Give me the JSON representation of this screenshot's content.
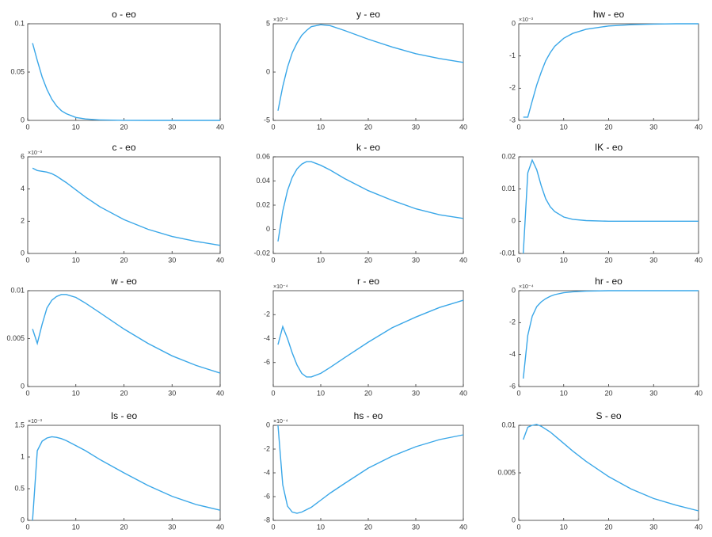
{
  "chart_data": [
    {
      "type": "line",
      "title": "o - eo",
      "x": [
        1,
        2,
        3,
        4,
        5,
        6,
        7,
        8,
        10,
        12,
        15,
        20,
        25,
        30,
        35,
        40
      ],
      "values": [
        0.08,
        0.062,
        0.045,
        0.032,
        0.022,
        0.015,
        0.01,
        0.007,
        0.003,
        0.0015,
        0.0005,
        0.0001,
        0,
        0,
        0,
        0
      ],
      "color": "#3aa7e8",
      "xlim": [
        0,
        40
      ],
      "xticks": [
        0,
        10,
        20,
        30,
        40
      ],
      "ylim": [
        0,
        0.1
      ],
      "yticks": [
        0,
        0.05,
        0.1
      ]
    },
    {
      "type": "line",
      "title": "y - eo",
      "y_multiplier": "×10⁻³",
      "x": [
        1,
        2,
        3,
        4,
        5,
        6,
        7,
        8,
        10,
        12,
        15,
        20,
        25,
        30,
        35,
        40
      ],
      "values": [
        -4,
        -1.5,
        0.5,
        2,
        3,
        3.8,
        4.3,
        4.7,
        4.9,
        4.8,
        4.3,
        3.4,
        2.6,
        1.9,
        1.4,
        1.0
      ],
      "color": "#3aa7e8",
      "xlim": [
        0,
        40
      ],
      "xticks": [
        0,
        10,
        20,
        30,
        40
      ],
      "ylim": [
        -5,
        5
      ],
      "yticks": [
        -5,
        0,
        5
      ]
    },
    {
      "type": "line",
      "title": "hw - eo",
      "y_multiplier": "×10⁻³",
      "x": [
        1,
        2,
        3,
        4,
        5,
        6,
        7,
        8,
        10,
        12,
        15,
        20,
        25,
        30,
        35,
        40
      ],
      "values": [
        -2.9,
        -2.9,
        -2.4,
        -1.9,
        -1.5,
        -1.15,
        -0.9,
        -0.7,
        -0.45,
        -0.3,
        -0.17,
        -0.07,
        -0.03,
        -0.01,
        0,
        0
      ],
      "color": "#3aa7e8",
      "xlim": [
        0,
        40
      ],
      "xticks": [
        0,
        10,
        20,
        30,
        40
      ],
      "ylim": [
        -3,
        0
      ],
      "yticks": [
        -3,
        -2,
        -1,
        0
      ]
    },
    {
      "type": "line",
      "title": "c - eo",
      "y_multiplier": "×10⁻³",
      "x": [
        1,
        2,
        3,
        4,
        5,
        6,
        7,
        8,
        10,
        12,
        15,
        20,
        25,
        30,
        35,
        40
      ],
      "values": [
        5.3,
        5.15,
        5.1,
        5.05,
        4.95,
        4.8,
        4.6,
        4.4,
        3.95,
        3.5,
        2.9,
        2.1,
        1.5,
        1.05,
        0.75,
        0.5
      ],
      "color": "#3aa7e8",
      "xlim": [
        0,
        40
      ],
      "xticks": [
        0,
        10,
        20,
        30,
        40
      ],
      "ylim": [
        0,
        6
      ],
      "yticks": [
        0,
        2,
        4,
        6
      ]
    },
    {
      "type": "line",
      "title": "k - eo",
      "x": [
        1,
        2,
        3,
        4,
        5,
        6,
        7,
        8,
        10,
        12,
        15,
        20,
        25,
        30,
        35,
        40
      ],
      "values": [
        -0.01,
        0.015,
        0.032,
        0.043,
        0.05,
        0.054,
        0.056,
        0.056,
        0.053,
        0.049,
        0.042,
        0.032,
        0.024,
        0.017,
        0.012,
        0.009
      ],
      "color": "#3aa7e8",
      "xlim": [
        0,
        40
      ],
      "xticks": [
        0,
        10,
        20,
        30,
        40
      ],
      "ylim": [
        -0.02,
        0.06
      ],
      "yticks": [
        -0.02,
        0,
        0.02,
        0.04,
        0.06
      ]
    },
    {
      "type": "line",
      "title": "IK - eo",
      "x": [
        1,
        2,
        3,
        4,
        5,
        6,
        7,
        8,
        10,
        12,
        15,
        20,
        25,
        30,
        35,
        40
      ],
      "values": [
        -0.01,
        0.015,
        0.019,
        0.016,
        0.011,
        0.007,
        0.0045,
        0.003,
        0.0013,
        0.0006,
        0.0002,
        0,
        0,
        0,
        0,
        0
      ],
      "color": "#3aa7e8",
      "xlim": [
        0,
        40
      ],
      "xticks": [
        0,
        10,
        20,
        30,
        40
      ],
      "ylim": [
        -0.01,
        0.02
      ],
      "yticks": [
        -0.01,
        0,
        0.01,
        0.02
      ]
    },
    {
      "type": "line",
      "title": "w - eo",
      "x": [
        1,
        2,
        3,
        4,
        5,
        6,
        7,
        8,
        10,
        12,
        15,
        20,
        25,
        30,
        35,
        40
      ],
      "values": [
        0.006,
        0.0045,
        0.0065,
        0.0082,
        0.009,
        0.0094,
        0.0096,
        0.0096,
        0.0093,
        0.0087,
        0.0077,
        0.006,
        0.0045,
        0.0032,
        0.0022,
        0.0014
      ],
      "color": "#3aa7e8",
      "xlim": [
        0,
        40
      ],
      "xticks": [
        0,
        10,
        20,
        30,
        40
      ],
      "ylim": [
        0,
        0.01
      ],
      "yticks": [
        0,
        0.005,
        0.01
      ]
    },
    {
      "type": "line",
      "title": "r - eo",
      "y_multiplier": "×10⁻⁴",
      "x": [
        1,
        2,
        3,
        4,
        5,
        6,
        7,
        8,
        10,
        12,
        15,
        20,
        25,
        30,
        35,
        40
      ],
      "values": [
        -4.5,
        -3,
        -4,
        -5.2,
        -6.2,
        -6.9,
        -7.2,
        -7.2,
        -6.9,
        -6.4,
        -5.6,
        -4.3,
        -3.1,
        -2.2,
        -1.4,
        -0.8
      ],
      "color": "#3aa7e8",
      "xlim": [
        0,
        40
      ],
      "xticks": [
        0,
        10,
        20,
        30,
        40
      ],
      "ylim": [
        -8,
        0
      ],
      "yticks": [
        -6,
        -4,
        -2
      ]
    },
    {
      "type": "line",
      "title": "hr - eo",
      "y_multiplier": "×10⁻⁴",
      "x": [
        1,
        2,
        3,
        4,
        5,
        6,
        7,
        8,
        10,
        12,
        15,
        20,
        25,
        30,
        35,
        40
      ],
      "values": [
        -5.5,
        -2.8,
        -1.6,
        -1,
        -0.7,
        -0.5,
        -0.35,
        -0.25,
        -0.13,
        -0.07,
        -0.03,
        0,
        0,
        0,
        0,
        0
      ],
      "color": "#3aa7e8",
      "xlim": [
        0,
        40
      ],
      "xticks": [
        0,
        10,
        20,
        30,
        40
      ],
      "ylim": [
        -6,
        0
      ],
      "yticks": [
        -6,
        -4,
        -2,
        0
      ]
    },
    {
      "type": "line",
      "title": "Is - eo",
      "y_multiplier": "×10⁻³",
      "x": [
        1,
        2,
        3,
        4,
        5,
        6,
        7,
        8,
        10,
        12,
        15,
        20,
        25,
        30,
        35,
        40
      ],
      "values": [
        0,
        1.1,
        1.25,
        1.3,
        1.32,
        1.31,
        1.29,
        1.26,
        1.18,
        1.1,
        0.96,
        0.75,
        0.55,
        0.38,
        0.25,
        0.16
      ],
      "color": "#3aa7e8",
      "xlim": [
        0,
        40
      ],
      "xticks": [
        0,
        10,
        20,
        30,
        40
      ],
      "ylim": [
        0,
        1.5
      ],
      "yticks": [
        0,
        0.5,
        1,
        1.5
      ]
    },
    {
      "type": "line",
      "title": "hs - eo",
      "y_multiplier": "×10⁻⁴",
      "x": [
        1,
        2,
        3,
        4,
        5,
        6,
        7,
        8,
        10,
        12,
        15,
        20,
        25,
        30,
        35,
        40
      ],
      "values": [
        0,
        -5,
        -6.8,
        -7.3,
        -7.4,
        -7.3,
        -7.1,
        -6.9,
        -6.3,
        -5.7,
        -4.9,
        -3.6,
        -2.6,
        -1.8,
        -1.2,
        -0.8
      ],
      "color": "#3aa7e8",
      "xlim": [
        0,
        40
      ],
      "xticks": [
        0,
        10,
        20,
        30,
        40
      ],
      "ylim": [
        -8,
        0
      ],
      "yticks": [
        -8,
        -6,
        -4,
        -2,
        0
      ]
    },
    {
      "type": "line",
      "title": "S - eo",
      "x": [
        1,
        2,
        3,
        4,
        5,
        6,
        7,
        8,
        10,
        12,
        15,
        20,
        25,
        30,
        35,
        40
      ],
      "values": [
        0.0085,
        0.0098,
        0.01,
        0.0101,
        0.0099,
        0.0096,
        0.0093,
        0.0089,
        0.0081,
        0.0073,
        0.0062,
        0.0046,
        0.0033,
        0.0023,
        0.0016,
        0.001
      ],
      "color": "#3aa7e8",
      "xlim": [
        0,
        40
      ],
      "xticks": [
        0,
        10,
        20,
        30,
        40
      ],
      "ylim": [
        0,
        0.01
      ],
      "yticks": [
        0,
        0.005,
        0.01
      ]
    }
  ]
}
